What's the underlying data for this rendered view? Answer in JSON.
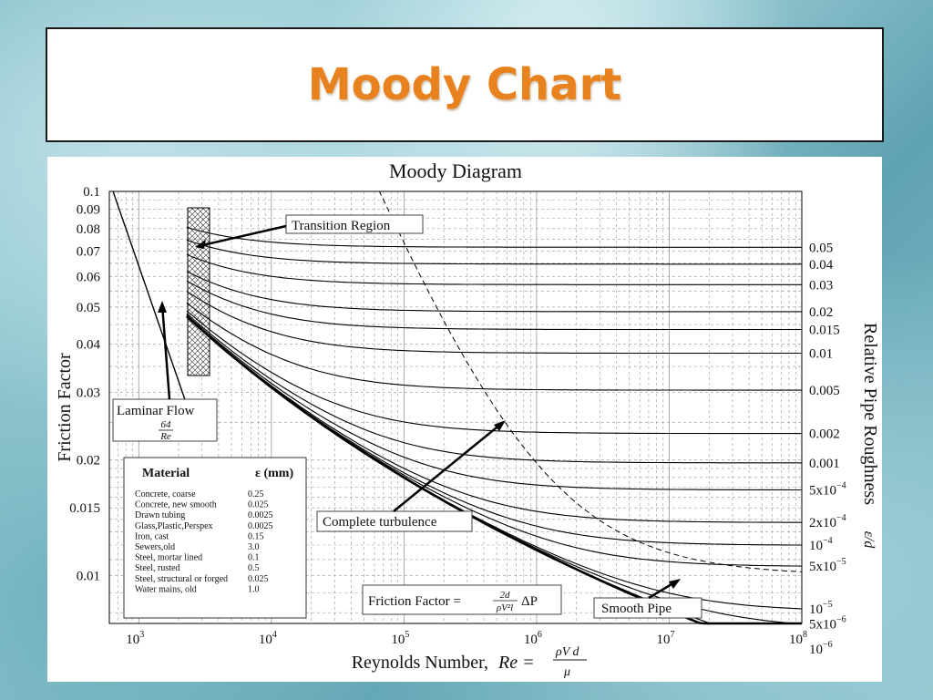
{
  "slide": {
    "title": "Moody Chart",
    "title_color": "#e8821e"
  },
  "chart_data": {
    "type": "line",
    "title": "Moody Diagram",
    "xlabel": "Reynolds Number,",
    "xlabel_formula": "Re = ρVd/μ",
    "ylabel": "Friction Factor",
    "right_label": "Relative Pipe Roughness",
    "right_label_symbol": "ε/d",
    "x_scale": "log",
    "y_scale": "log",
    "xlim": [
      600,
      100000000
    ],
    "ylim": [
      0.0075,
      0.1
    ],
    "grid": true,
    "x_ticks": [
      {
        "v": 1000,
        "b": "10",
        "e": "3"
      },
      {
        "v": 10000,
        "b": "10",
        "e": "4"
      },
      {
        "v": 100000,
        "b": "10",
        "e": "5"
      },
      {
        "v": 1000000,
        "b": "10",
        "e": "6"
      },
      {
        "v": 10000000,
        "b": "10",
        "e": "7"
      },
      {
        "v": 100000000,
        "b": "10",
        "e": "8"
      }
    ],
    "y_ticks": [
      {
        "v": 0.1,
        "label": "0.1"
      },
      {
        "v": 0.09,
        "label": "0.09"
      },
      {
        "v": 0.08,
        "label": "0.08"
      },
      {
        "v": 0.07,
        "label": "0.07"
      },
      {
        "v": 0.06,
        "label": "0.06"
      },
      {
        "v": 0.05,
        "label": "0.05"
      },
      {
        "v": 0.04,
        "label": "0.04"
      },
      {
        "v": 0.03,
        "label": "0.03"
      },
      {
        "v": 0.02,
        "label": "0.02"
      },
      {
        "v": 0.015,
        "label": "0.015"
      },
      {
        "v": 0.01,
        "label": "0.01"
      }
    ],
    "roughness_curves": [
      {
        "value": 0.05,
        "label": "0.05"
      },
      {
        "value": 0.04,
        "label": "0.04"
      },
      {
        "value": 0.03,
        "label": "0.03"
      },
      {
        "value": 0.02,
        "label": "0.02"
      },
      {
        "value": 0.015,
        "label": "0.015"
      },
      {
        "value": 0.01,
        "label": "0.01"
      },
      {
        "value": 0.005,
        "label": "0.005"
      },
      {
        "value": 0.002,
        "label": "0.002"
      },
      {
        "value": 0.001,
        "label": "0.001"
      },
      {
        "value": 0.0005,
        "label": "5x10",
        "exp": "−4"
      },
      {
        "value": 0.0002,
        "label": "2x10",
        "exp": "−4"
      },
      {
        "value": 0.0001,
        "label": "10",
        "exp": "−4"
      },
      {
        "value": 5e-05,
        "label": "5x10",
        "exp": "−5"
      },
      {
        "value": 1e-05,
        "label": "10",
        "exp": "−5"
      },
      {
        "value": 5e-06,
        "label": "5x10",
        "exp": "−6"
      },
      {
        "value": 1e-06,
        "label": "10",
        "exp": "−6"
      }
    ],
    "annotations": {
      "transition": "Transition Region",
      "laminar": "Laminar Flow",
      "laminar_num": "64",
      "laminar_den": "Re",
      "complete": "Complete turbulence",
      "friction_label": "Friction Factor =",
      "friction_num": "2d",
      "friction_den": "ρV²l",
      "friction_tail": "ΔP",
      "smooth": "Smooth Pipe"
    },
    "material_table": {
      "header_material": "Material",
      "header_eps": "ε (mm)",
      "rows": [
        {
          "name": "Concrete, coarse",
          "eps": "0.25"
        },
        {
          "name": "Concrete, new smooth",
          "eps": "0.025"
        },
        {
          "name": "Drawn tubing",
          "eps": "0.0025"
        },
        {
          "name": "Glass,Plastic,Perspex",
          "eps": "0.0025"
        },
        {
          "name": "Iron, cast",
          "eps": "0.15"
        },
        {
          "name": "Sewers,old",
          "eps": "3.0"
        },
        {
          "name": "Steel, mortar lined",
          "eps": "0.1"
        },
        {
          "name": "Steel, rusted",
          "eps": "0.5"
        },
        {
          "name": "Steel, structural or forged",
          "eps": "0.025"
        },
        {
          "name": "Water mains, old",
          "eps": "1.0"
        }
      ]
    }
  }
}
